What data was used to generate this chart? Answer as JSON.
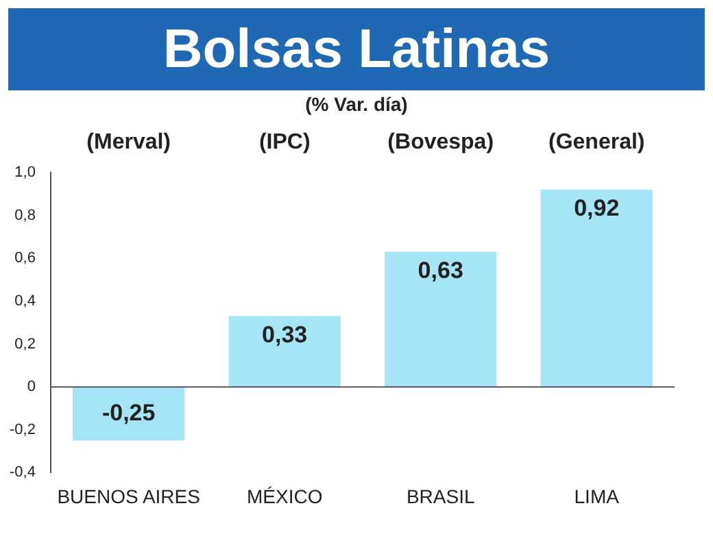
{
  "chart_data": {
    "type": "bar",
    "title": "Bolsas Latinas",
    "subtitle": "(% Var. día)",
    "categories": [
      "BUENOS AIRES",
      "MÉXICO",
      "BRASIL",
      "LIMA"
    ],
    "values": [
      -0.25,
      0.33,
      0.63,
      0.92
    ],
    "value_labels": [
      "-0,25",
      "0,33",
      "0,63",
      "0,92"
    ],
    "color": "#a6e4f8",
    "ylim": [
      -0.4,
      1.0
    ],
    "yticks": [
      {
        "value": -0.4,
        "label": "-0,4"
      },
      {
        "value": -0.2,
        "label": "-0,2"
      },
      0,
      {
        "value": 0.2,
        "label": "0,2"
      },
      {
        "value": 0.4,
        "label": "0,4"
      },
      {
        "value": 0.6,
        "label": "0,6"
      },
      {
        "value": 0.8,
        "label": "0,8"
      },
      {
        "value": 1.0,
        "label": "1,0"
      }
    ],
    "annotations": [
      "(Merval)",
      "(IPC)",
      "(Bovespa)",
      "(General)"
    ],
    "ref_lines": [
      {
        "axis": "y",
        "value": 0,
        "color": "#555555"
      }
    ],
    "grid": false,
    "legend": false
  }
}
